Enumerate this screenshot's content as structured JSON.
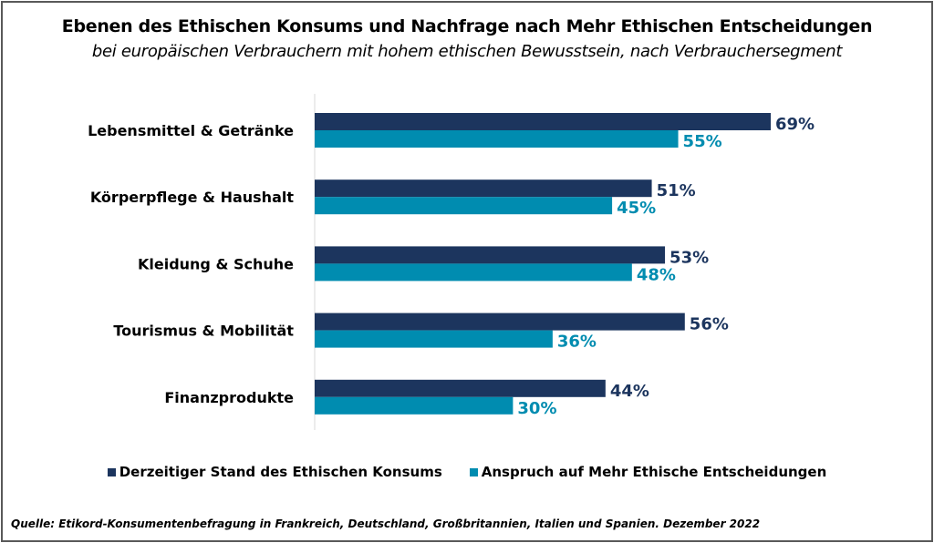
{
  "chart_data": {
    "type": "bar",
    "orientation": "horizontal",
    "title": "Ebenen des Ethischen Konsums und Nachfrage nach Mehr Ethischen Entscheidungen",
    "subtitle": "bei europäischen Verbrauchern mit hohem ethischen Bewusstsein, nach Verbrauchersegment",
    "categories": [
      "Lebensmittel & Getränke",
      "Körperpflege & Haushalt",
      "Kleidung & Schuhe",
      "Tourismus & Mobilität",
      "Finanzprodukte"
    ],
    "series": [
      {
        "name": "Derzeitiger Stand des Ethischen Konsums",
        "values": [
          69,
          51,
          53,
          56,
          44
        ],
        "labels": [
          "69%",
          "51%",
          "53%",
          "56%",
          "44%"
        ],
        "color": "#1c355e"
      },
      {
        "name": "Anspruch auf Mehr Ethische Entscheidungen",
        "values": [
          55,
          45,
          48,
          36,
          30
        ],
        "labels": [
          "55%",
          "45%",
          "48%",
          "36%",
          "30%"
        ],
        "color": "#008cb0"
      }
    ],
    "xlim": [
      0,
      70
    ],
    "grid": false,
    "legend_position": "bottom",
    "source": "Quelle: Etikord-Konsumentenbefragung in Frankreich, Deutschland, Großbritannien, Italien und Spanien. Dezember 2022"
  }
}
